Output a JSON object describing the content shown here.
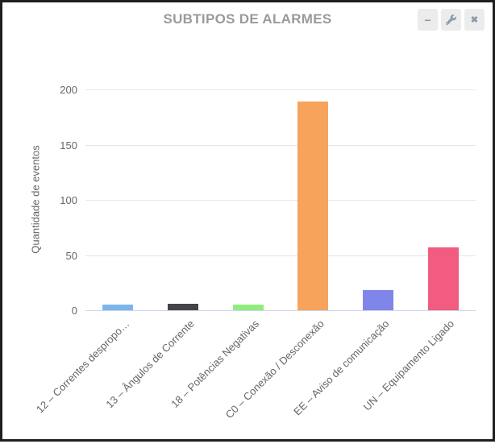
{
  "widget": {
    "title": "SUBTIPOS DE ALARMES",
    "controls": {
      "minimize_glyph": "−",
      "close_glyph": "✖"
    }
  },
  "chart_data": {
    "type": "bar",
    "title": "SUBTIPOS DE ALARMES",
    "categories": [
      "12 – Correntes despropo…",
      "13 – Ângulos de Corrente",
      "18 – Potências Negativas",
      "C0 – Conexão / Desconexão",
      "EE – Aviso de comunicação",
      "UN – Equipamento Ligado"
    ],
    "values": [
      5,
      6,
      5,
      189,
      18,
      57
    ],
    "bar_colors": [
      "#7cb5ec",
      "#434348",
      "#90ed7d",
      "#f7a35c",
      "#8085e9",
      "#f15c80"
    ],
    "xlabel": "",
    "ylabel": "Quantidade de eventos",
    "ylim": [
      0,
      200
    ],
    "yticks": [
      0,
      50,
      100,
      150,
      200
    ],
    "grid": true,
    "legend": "none",
    "grid_color": "#e6e6e6",
    "axis_line_color": "#ccd6eb",
    "text_color": "#666666"
  }
}
